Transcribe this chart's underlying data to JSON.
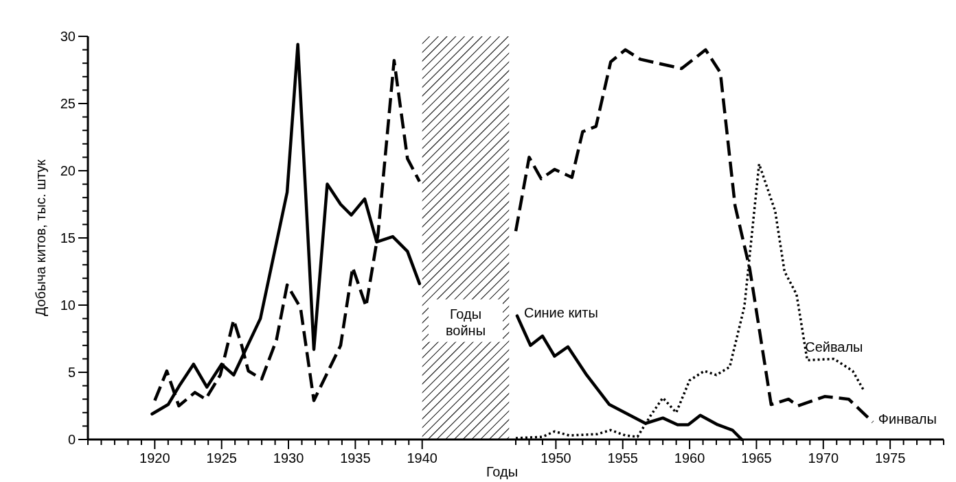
{
  "chart_data": {
    "type": "line",
    "xlabel": "Годы",
    "ylabel": "Добыча китов, тыс. штук",
    "xlim": [
      1915,
      1979
    ],
    "ylim": [
      0,
      30
    ],
    "xticks": [
      {
        "value": 1915,
        "label": null
      },
      {
        "value": 1916,
        "label": null
      },
      {
        "value": 1917,
        "label": null
      },
      {
        "value": 1918,
        "label": null
      },
      {
        "value": 1919,
        "label": null
      },
      1920,
      {
        "value": 1921,
        "label": null
      },
      {
        "value": 1922,
        "label": null
      },
      {
        "value": 1923,
        "label": null
      },
      {
        "value": 1924,
        "label": null
      },
      1925,
      {
        "value": 1926,
        "label": null
      },
      {
        "value": 1927,
        "label": null
      },
      {
        "value": 1928,
        "label": null
      },
      {
        "value": 1929,
        "label": null
      },
      1930,
      {
        "value": 1931,
        "label": null
      },
      {
        "value": 1932,
        "label": null
      },
      {
        "value": 1933,
        "label": null
      },
      {
        "value": 1934,
        "label": null
      },
      1935,
      {
        "value": 1936,
        "label": null
      },
      {
        "value": 1937,
        "label": null
      },
      {
        "value": 1938,
        "label": null
      },
      {
        "value": 1939,
        "label": null
      },
      1940,
      {
        "value": 1947,
        "label": null
      },
      {
        "value": 1948,
        "label": null
      },
      {
        "value": 1949,
        "label": null
      },
      1950,
      {
        "value": 1951,
        "label": null
      },
      {
        "value": 1952,
        "label": null
      },
      {
        "value": 1953,
        "label": null
      },
      {
        "value": 1954,
        "label": null
      },
      1955,
      {
        "value": 1956,
        "label": null
      },
      {
        "value": 1957,
        "label": null
      },
      {
        "value": 1958,
        "label": null
      },
      {
        "value": 1959,
        "label": null
      },
      1960,
      {
        "value": 1961,
        "label": null
      },
      {
        "value": 1962,
        "label": null
      },
      {
        "value": 1963,
        "label": null
      },
      {
        "value": 1964,
        "label": null
      },
      1965,
      {
        "value": 1966,
        "label": null
      },
      {
        "value": 1967,
        "label": null
      },
      {
        "value": 1968,
        "label": null
      },
      {
        "value": 1969,
        "label": null
      },
      1970,
      {
        "value": 1971,
        "label": null
      },
      {
        "value": 1972,
        "label": null
      },
      {
        "value": 1973,
        "label": null
      },
      {
        "value": 1974,
        "label": null
      },
      1975,
      {
        "value": 1976,
        "label": null
      },
      {
        "value": 1977,
        "label": null
      },
      {
        "value": 1978,
        "label": null
      },
      {
        "value": 1979,
        "label": null
      }
    ],
    "yticks": [
      0,
      {
        "value": 1,
        "label": null
      },
      {
        "value": 2,
        "label": null
      },
      {
        "value": 3,
        "label": null
      },
      {
        "value": 4,
        "label": null
      },
      5,
      {
        "value": 6,
        "label": null
      },
      {
        "value": 7,
        "label": null
      },
      {
        "value": 8,
        "label": null
      },
      {
        "value": 9,
        "label": null
      },
      10,
      {
        "value": 11,
        "label": null
      },
      {
        "value": 12,
        "label": null
      },
      {
        "value": 13,
        "label": null
      },
      {
        "value": 14,
        "label": null
      },
      15,
      {
        "value": 16,
        "label": null
      },
      {
        "value": 17,
        "label": null
      },
      {
        "value": 18,
        "label": null
      },
      {
        "value": 19,
        "label": null
      },
      20,
      {
        "value": 21,
        "label": null
      },
      {
        "value": 22,
        "label": null
      },
      {
        "value": 23,
        "label": null
      },
      {
        "value": 24,
        "label": null
      },
      25,
      {
        "value": 26,
        "label": null
      },
      {
        "value": 27,
        "label": null
      },
      {
        "value": 28,
        "label": null
      },
      {
        "value": 29,
        "label": null
      },
      30
    ],
    "bands": [
      {
        "axis": "x",
        "from": 1940,
        "to": 1946.5,
        "label": "Годы войны",
        "color": "#000000"
      }
    ],
    "grid": false,
    "marker": "none",
    "series": [
      {
        "name": "Синие киты",
        "color": "#000000",
        "line_style": "solid",
        "x": [
          1919.8,
          1921.0,
          1921.9,
          1922.9,
          1923.9,
          1925.0,
          1925.9,
          1927.9,
          1929.9,
          1930.7,
          1931.9,
          1932.9,
          1933.9,
          1934.7,
          1935.7,
          1936.6,
          1937.8,
          1938.9,
          1939.8,
          1943,
          1947.1,
          1948.1,
          1949.0,
          1949.9,
          1950.9,
          1952.3,
          1954.0,
          1956.7,
          1958.0,
          1959.1,
          1959.9,
          1960.8,
          1962.1,
          1963.2,
          1963.9
        ],
        "values": [
          1.9,
          2.6,
          4.1,
          5.6,
          3.9,
          5.6,
          4.8,
          9.0,
          18.4,
          29.4,
          6.7,
          19.0,
          17.5,
          16.7,
          17.9,
          14.7,
          15.1,
          14.0,
          11.6,
          null,
          9.2,
          7.0,
          7.7,
          6.2,
          6.9,
          4.8,
          2.6,
          1.2,
          1.6,
          1.1,
          1.1,
          1.8,
          1.1,
          0.7,
          0
        ]
      },
      {
        "name": "Сейвалы",
        "color": "#000000",
        "line_style": "dotted",
        "x": [
          1947.0,
          1949.0,
          1949.9,
          1951.0,
          1953.1,
          1954.1,
          1955.2,
          1956.1,
          1957.1,
          1958.0,
          1959.0,
          1960.0,
          1961.1,
          1962.0,
          1963.0,
          1964.1,
          1965.2,
          1966.4,
          1967.1,
          1968.0,
          1968.8,
          1970.8,
          1972.2,
          1973.0
        ],
        "values": [
          0.1,
          0.2,
          0.6,
          0.3,
          0.4,
          0.7,
          0.3,
          0.2,
          1.8,
          3.1,
          2.0,
          4.4,
          5.1,
          4.8,
          5.4,
          9.9,
          20.5,
          17.0,
          12.5,
          10.8,
          5.9,
          6.0,
          5.1,
          3.7
        ]
      },
      {
        "name": "Финвалы",
        "color": "#000000",
        "line_style": "dashed",
        "x": [
          1920.0,
          1920.9,
          1921.8,
          1923.0,
          1923.8,
          1924.9,
          1925.9,
          1926.5,
          1927.0,
          1928.0,
          1929.1,
          1929.9,
          1930.9,
          1931.9,
          1933.9,
          1934.8,
          1935.8,
          1936.7,
          1937.9,
          1938.9,
          1939.8,
          1943,
          1947.0,
          1948.0,
          1948.9,
          1949.9,
          1951.2,
          1952.0,
          1953.0,
          1954.1,
          1955.2,
          1956.3,
          1959.4,
          1961.2,
          1962.3,
          1963.4,
          1964.5,
          1966.1,
          1967.4,
          1968.1,
          1970.1,
          1971.9,
          1973.7
        ],
        "values": [
          2.9,
          5.1,
          2.5,
          3.5,
          3.0,
          4.8,
          8.9,
          7.0,
          5.1,
          4.5,
          7.4,
          11.5,
          9.8,
          2.9,
          7.0,
          12.8,
          9.9,
          15.3,
          28.2,
          20.9,
          19.2,
          null,
          15.5,
          21.0,
          19.4,
          20.1,
          19.5,
          22.9,
          23.3,
          28.1,
          29.0,
          28.3,
          27.6,
          29.0,
          27.3,
          17.4,
          12.7,
          2.6,
          3.0,
          2.5,
          3.2,
          3.0,
          1.3
        ]
      }
    ]
  }
}
